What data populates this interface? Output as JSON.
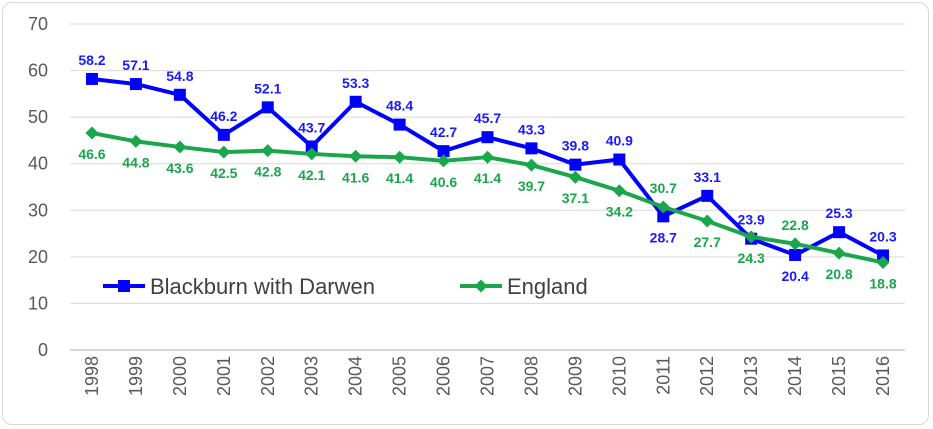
{
  "chart_data": {
    "type": "line",
    "title": "",
    "xlabel": "",
    "ylabel": "",
    "ylim": [
      0,
      70
    ],
    "yticks": [
      "0",
      "10",
      "20",
      "30",
      "40",
      "50",
      "60",
      "70"
    ],
    "grid": "horizontal",
    "legend_position": "bottom-left",
    "categories": [
      "1998",
      "1999",
      "2000",
      "2001",
      "2002",
      "2003",
      "2004",
      "2005",
      "2006",
      "2007",
      "2008",
      "2009",
      "2010",
      "2011",
      "2012",
      "2013",
      "2014",
      "2015",
      "2016"
    ],
    "series": [
      {
        "name": "Blackburn with Darwen",
        "color": "#0000ff",
        "marker": "square",
        "label_color": "#1a1aff",
        "values": [
          58.2,
          57.1,
          54.8,
          46.2,
          52.1,
          43.7,
          53.3,
          48.4,
          42.7,
          45.7,
          43.3,
          39.8,
          40.9,
          28.7,
          33.1,
          23.9,
          20.4,
          25.3,
          20.3
        ],
        "labels": [
          "58.2",
          "57.1",
          "54.8",
          "46.2",
          "52.1",
          "43.7",
          "53.3",
          "48.4",
          "42.7",
          "45.7",
          "43.3",
          "39.8",
          "40.9",
          "28.7",
          "33.1",
          "23.9",
          "20.4",
          "25.3",
          "20.3"
        ]
      },
      {
        "name": "England",
        "color": "#1aa64a",
        "marker": "diamond",
        "label_color": "#1aa64a",
        "values": [
          46.6,
          44.8,
          43.6,
          42.5,
          42.8,
          42.1,
          41.6,
          41.4,
          40.6,
          41.4,
          39.7,
          37.1,
          34.2,
          30.7,
          27.7,
          24.3,
          22.8,
          20.8,
          18.8
        ],
        "labels": [
          "46.6",
          "44.8",
          "43.6",
          "42.5",
          "42.8",
          "42.1",
          "41.6",
          "41.4",
          "40.6",
          "41.4",
          "39.7",
          "37.1",
          "34.2",
          "30.7",
          "27.7",
          "24.3",
          "22.8",
          "20.8",
          "18.8"
        ]
      }
    ]
  }
}
